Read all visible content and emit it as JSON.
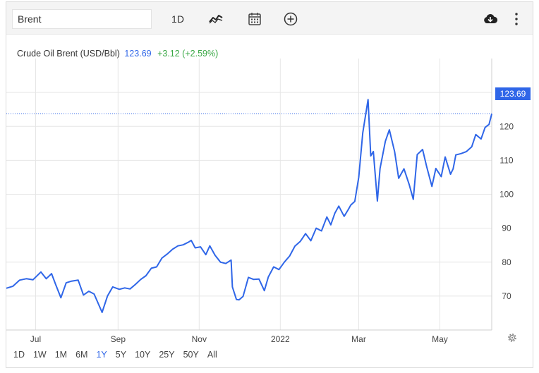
{
  "toolbar": {
    "search_value": "Brent",
    "interval_label": "1D",
    "icons": [
      "line-chart-icon",
      "calendar-icon",
      "add-circle-icon",
      "cloud-download-icon",
      "more-vertical-icon"
    ]
  },
  "legend": {
    "name": "Crude Oil Brent (USD/Bbl)",
    "price": "123.69",
    "change": "+3.12 (+2.59%)"
  },
  "price_tag": "123.69",
  "ranges": [
    {
      "label": "1D",
      "active": false
    },
    {
      "label": "1W",
      "active": false
    },
    {
      "label": "1M",
      "active": false
    },
    {
      "label": "6M",
      "active": false
    },
    {
      "label": "1Y",
      "active": true
    },
    {
      "label": "5Y",
      "active": false
    },
    {
      "label": "10Y",
      "active": false
    },
    {
      "label": "25Y",
      "active": false
    },
    {
      "label": "50Y",
      "active": false
    },
    {
      "label": "All",
      "active": false
    }
  ],
  "colors": {
    "line": "#2f66e8",
    "positive": "#3aa845",
    "grid": "#e6e6e6"
  },
  "chart_data": {
    "type": "line",
    "title": "Crude Oil Brent (USD/Bbl)",
    "xlabel": "",
    "ylabel": "",
    "x_range": [
      "2021-06-09",
      "2022-06-09"
    ],
    "ylim": [
      60,
      140
    ],
    "y_ticks": [
      70,
      80,
      90,
      100,
      110,
      120,
      130
    ],
    "x_ticks": [
      {
        "label": "Jul",
        "date": "2021-07-01"
      },
      {
        "label": "Sep",
        "date": "2021-09-01"
      },
      {
        "label": "Nov",
        "date": "2021-11-01"
      },
      {
        "label": "2022",
        "date": "2022-01-01"
      },
      {
        "label": "Mar",
        "date": "2022-03-01"
      },
      {
        "label": "May",
        "date": "2022-05-01"
      }
    ],
    "last_value": 123.69,
    "grid": true,
    "series": [
      {
        "values": [
          [
            "2021-06-09",
            72.3
          ],
          [
            "2021-06-14",
            72.9
          ],
          [
            "2021-06-19",
            74.7
          ],
          [
            "2021-06-24",
            75.1
          ],
          [
            "2021-06-29",
            74.8
          ],
          [
            "2021-07-05",
            77.1
          ],
          [
            "2021-07-09",
            75.1
          ],
          [
            "2021-07-13",
            76.6
          ],
          [
            "2021-07-16",
            73.5
          ],
          [
            "2021-07-20",
            69.5
          ],
          [
            "2021-07-24",
            73.9
          ],
          [
            "2021-07-28",
            74.4
          ],
          [
            "2021-08-02",
            74.7
          ],
          [
            "2021-08-06",
            70.3
          ],
          [
            "2021-08-10",
            71.4
          ],
          [
            "2021-08-14",
            70.6
          ],
          [
            "2021-08-20",
            65.2
          ],
          [
            "2021-08-24",
            70.0
          ],
          [
            "2021-08-28",
            72.7
          ],
          [
            "2021-09-02",
            72.0
          ],
          [
            "2021-09-06",
            72.4
          ],
          [
            "2021-09-10",
            72.1
          ],
          [
            "2021-09-14",
            73.4
          ],
          [
            "2021-09-18",
            74.9
          ],
          [
            "2021-09-22",
            76.0
          ],
          [
            "2021-09-26",
            78.2
          ],
          [
            "2021-09-30",
            78.6
          ],
          [
            "2021-10-04",
            81.2
          ],
          [
            "2021-10-08",
            82.4
          ],
          [
            "2021-10-12",
            83.8
          ],
          [
            "2021-10-16",
            84.8
          ],
          [
            "2021-10-20",
            85.1
          ],
          [
            "2021-10-24",
            85.9
          ],
          [
            "2021-10-26",
            86.4
          ],
          [
            "2021-10-29",
            84.2
          ],
          [
            "2021-11-02",
            84.5
          ],
          [
            "2021-11-06",
            82.2
          ],
          [
            "2021-11-09",
            84.8
          ],
          [
            "2021-11-13",
            82.0
          ],
          [
            "2021-11-17",
            80.0
          ],
          [
            "2021-11-21",
            79.6
          ],
          [
            "2021-11-25",
            80.6
          ],
          [
            "2021-11-26",
            72.7
          ],
          [
            "2021-11-29",
            69.0
          ],
          [
            "2021-12-01",
            68.9
          ],
          [
            "2021-12-04",
            69.9
          ],
          [
            "2021-12-08",
            75.5
          ],
          [
            "2021-12-12",
            74.9
          ],
          [
            "2021-12-16",
            75.0
          ],
          [
            "2021-12-20",
            71.6
          ],
          [
            "2021-12-23",
            75.6
          ],
          [
            "2021-12-27",
            78.6
          ],
          [
            "2021-12-31",
            77.8
          ],
          [
            "2022-01-04",
            80.0
          ],
          [
            "2022-01-08",
            81.8
          ],
          [
            "2022-01-12",
            84.7
          ],
          [
            "2022-01-16",
            86.1
          ],
          [
            "2022-01-20",
            88.4
          ],
          [
            "2022-01-24",
            86.3
          ],
          [
            "2022-01-28",
            90.0
          ],
          [
            "2022-02-01",
            89.2
          ],
          [
            "2022-02-05",
            93.3
          ],
          [
            "2022-02-08",
            91.0
          ],
          [
            "2022-02-11",
            94.4
          ],
          [
            "2022-02-14",
            96.5
          ],
          [
            "2022-02-18",
            93.5
          ],
          [
            "2022-02-21",
            95.4
          ],
          [
            "2022-02-23",
            96.8
          ],
          [
            "2022-02-26",
            97.9
          ],
          [
            "2022-03-01",
            105.0
          ],
          [
            "2022-03-04",
            118.1
          ],
          [
            "2022-03-08",
            127.9
          ],
          [
            "2022-03-10",
            111.3
          ],
          [
            "2022-03-12",
            112.6
          ],
          [
            "2022-03-15",
            98.0
          ],
          [
            "2022-03-17",
            107.6
          ],
          [
            "2022-03-21",
            115.6
          ],
          [
            "2022-03-24",
            119.0
          ],
          [
            "2022-03-28",
            112.5
          ],
          [
            "2022-03-31",
            104.7
          ],
          [
            "2022-04-04",
            107.5
          ],
          [
            "2022-04-08",
            102.8
          ],
          [
            "2022-04-11",
            98.5
          ],
          [
            "2022-04-14",
            111.7
          ],
          [
            "2022-04-18",
            113.2
          ],
          [
            "2022-04-21",
            108.3
          ],
          [
            "2022-04-25",
            102.3
          ],
          [
            "2022-04-28",
            107.6
          ],
          [
            "2022-05-02",
            105.2
          ],
          [
            "2022-05-05",
            111.0
          ],
          [
            "2022-05-09",
            105.9
          ],
          [
            "2022-05-11",
            107.5
          ],
          [
            "2022-05-13",
            111.6
          ],
          [
            "2022-05-17",
            112.0
          ],
          [
            "2022-05-21",
            112.6
          ],
          [
            "2022-05-25",
            114.0
          ],
          [
            "2022-05-28",
            117.6
          ],
          [
            "2022-06-01",
            116.3
          ],
          [
            "2022-06-04",
            119.7
          ],
          [
            "2022-06-07",
            120.6
          ],
          [
            "2022-06-09",
            123.69
          ]
        ]
      }
    ]
  }
}
